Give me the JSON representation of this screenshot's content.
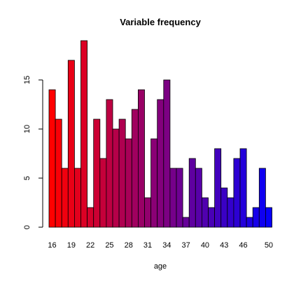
{
  "chart_data": {
    "type": "bar",
    "title": "Variable frequency",
    "xlabel": "age",
    "ylabel": "",
    "categories": [
      16,
      17,
      18,
      19,
      20,
      21,
      22,
      23,
      24,
      25,
      26,
      27,
      28,
      29,
      30,
      31,
      32,
      33,
      34,
      35,
      36,
      37,
      38,
      39,
      40,
      41,
      42,
      43,
      44,
      45,
      46,
      47,
      48,
      49,
      50,
      51
    ],
    "values": [
      14,
      11,
      6,
      17,
      6,
      19,
      2,
      11,
      7,
      13,
      10,
      11,
      9,
      12,
      14,
      3,
      9,
      13,
      15,
      6,
      6,
      1,
      7,
      6,
      3,
      2,
      8,
      4,
      3,
      7,
      8,
      1,
      2,
      6,
      2,
      0
    ],
    "x_tick_labels": [
      "16",
      "19",
      "22",
      "25",
      "28",
      "31",
      "34",
      "37",
      "40",
      "43",
      "46",
      "50"
    ],
    "y_tick_labels": [
      "0",
      "5",
      "10",
      "15"
    ],
    "ylim": [
      0,
      19
    ],
    "grid": false,
    "legend": "none",
    "color_gradient": {
      "start": "#ff0000",
      "end": "#0000ff"
    }
  }
}
